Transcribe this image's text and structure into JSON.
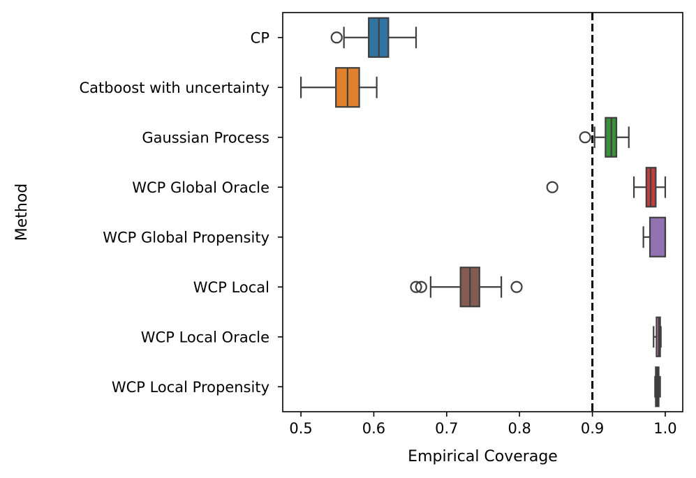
{
  "chart_data": {
    "type": "boxplot",
    "orientation": "horizontal",
    "title": "",
    "xlabel": "Empirical Coverage",
    "ylabel": "Method",
    "xlim": [
      0.475,
      1.024
    ],
    "xticks": [
      0.5,
      0.6,
      0.7,
      0.8,
      0.9,
      1.0
    ],
    "xtick_labels": [
      "0.5",
      "0.6",
      "0.7",
      "0.8",
      "0.9",
      "1.0"
    ],
    "reference_line": {
      "x": 0.9,
      "style": "dashed",
      "color": "#000000"
    },
    "grid": false,
    "series": [
      {
        "name": "CP",
        "color": "#3274a1",
        "whisker_low": 0.559,
        "q1": 0.593,
        "median": 0.607,
        "q3": 0.62,
        "whisker_high": 0.658,
        "outliers": [
          0.549
        ]
      },
      {
        "name": "Catboost with uncertainty",
        "color": "#e1812c",
        "whisker_low": 0.5,
        "q1": 0.548,
        "median": 0.564,
        "q3": 0.58,
        "whisker_high": 0.604,
        "outliers": []
      },
      {
        "name": "Gaussian Process",
        "color": "#3a923a",
        "whisker_low": 0.903,
        "q1": 0.918,
        "median": 0.926,
        "q3": 0.933,
        "whisker_high": 0.95,
        "outliers": [
          0.89
        ]
      },
      {
        "name": "WCP Global Oracle",
        "color": "#c03d3e",
        "whisker_low": 0.957,
        "q1": 0.974,
        "median": 0.98,
        "q3": 0.987,
        "whisker_high": 1.0,
        "outliers": [
          0.845
        ]
      },
      {
        "name": "WCP Global Propensity",
        "color": "#9372b2",
        "whisker_low": 0.97,
        "q1": 0.979,
        "median": 1.0,
        "q3": 1.0,
        "whisker_high": 1.0,
        "outliers": []
      },
      {
        "name": "WCP Local",
        "color": "#845b53",
        "whisker_low": 0.678,
        "q1": 0.719,
        "median": 0.732,
        "q3": 0.745,
        "whisker_high": 0.775,
        "outliers": [
          0.658,
          0.665,
          0.796
        ]
      },
      {
        "name": "WCP Local Oracle",
        "color": "#d684bd",
        "whisker_low": 0.984,
        "q1": 0.988,
        "median": 0.991,
        "q3": 0.993,
        "whisker_high": 0.994,
        "outliers": []
      },
      {
        "name": "WCP Local Propensity",
        "color": "#7f7f7f",
        "whisker_low": 0.986,
        "q1": 0.987,
        "median": 0.989,
        "q3": 0.991,
        "whisker_high": 0.993,
        "outliers": []
      }
    ]
  }
}
